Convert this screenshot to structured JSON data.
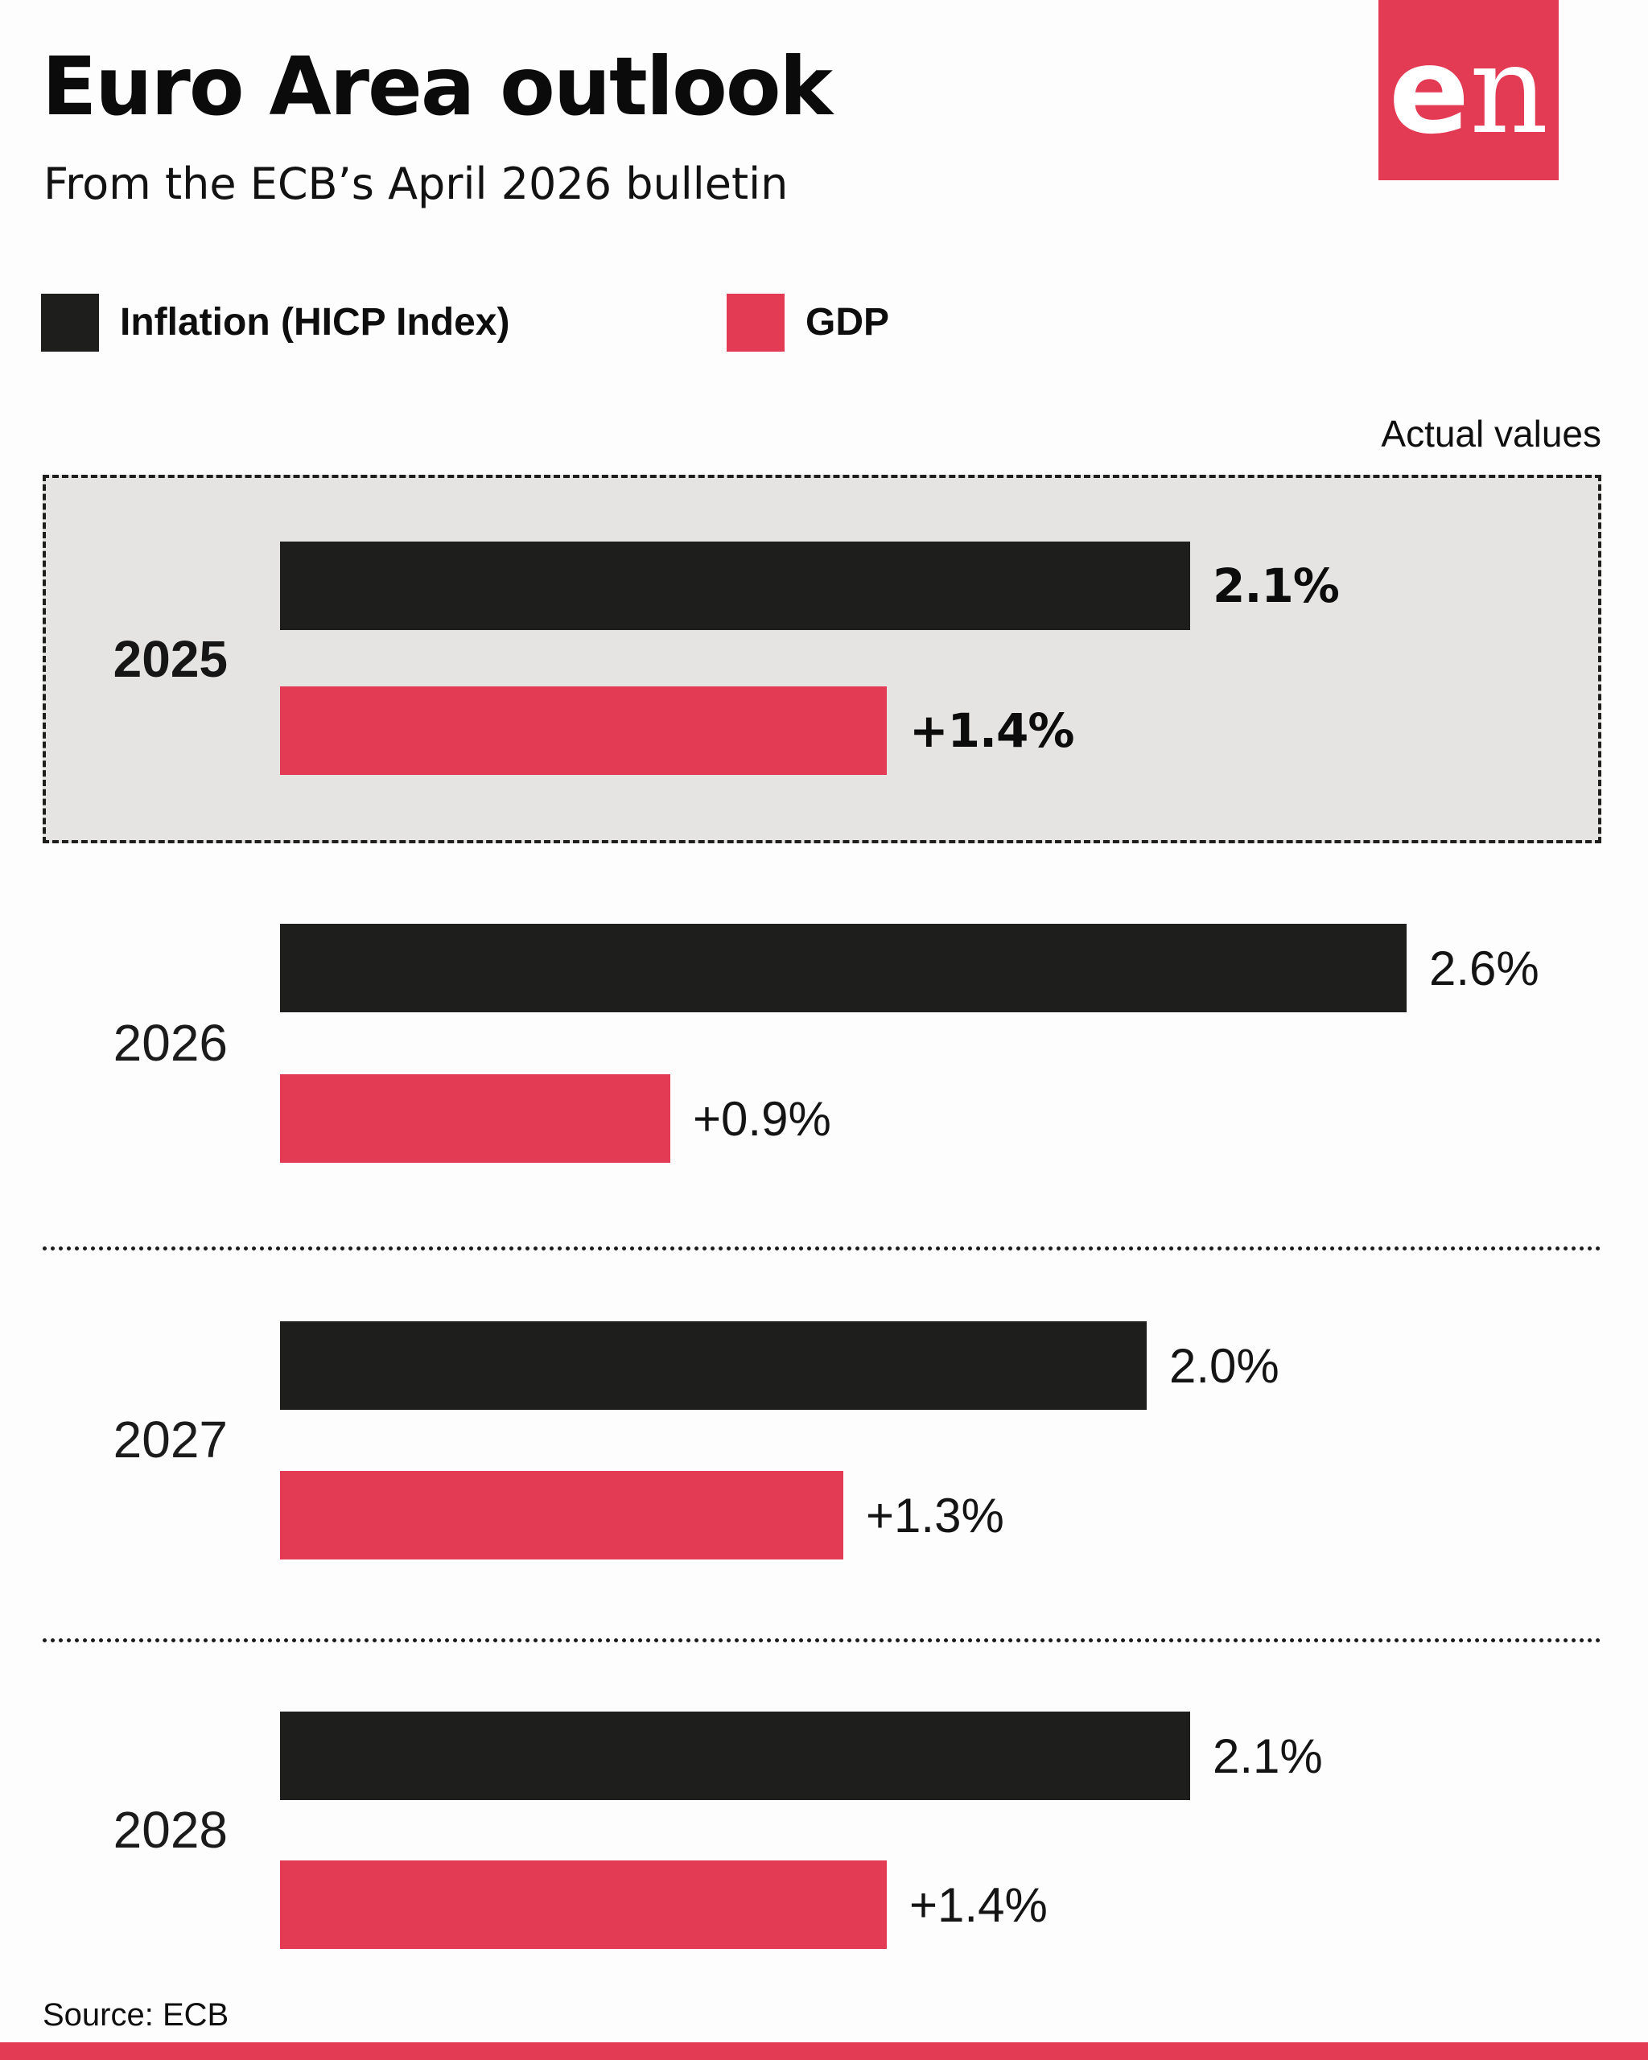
{
  "header": {
    "title": "Euro Area outlook",
    "subtitle": "From the ECB’s April 2026 bulletin"
  },
  "logo": {
    "e": "e",
    "n": "n"
  },
  "legend": {
    "inflation_label": "Inflation (HICP Index)",
    "gdp_label": "GDP"
  },
  "annotations": {
    "actual_values": "Actual values"
  },
  "chart_data": {
    "type": "bar",
    "orientation": "horizontal",
    "title": "Euro Area outlook",
    "subtitle": "From the ECB’s April 2026 bulletin",
    "categories": [
      "2025",
      "2026",
      "2027",
      "2028"
    ],
    "series": [
      {
        "name": "Inflation (HICP Index)",
        "color": "#1E1E1C",
        "values": [
          2.1,
          2.6,
          2.0,
          2.1
        ]
      },
      {
        "name": "GDP",
        "color": "#E43B55",
        "values": [
          1.4,
          0.9,
          1.3,
          1.4
        ]
      }
    ],
    "xlim": [
      0,
      2.6
    ],
    "grid": false,
    "legend_position": "top",
    "highlighted_category": "2025",
    "highlight_note": "Actual values",
    "rows": [
      {
        "year": "2025",
        "highlight": true,
        "inflation_value": 2.1,
        "inflation_label": "2.1%",
        "gdp_value": 1.4,
        "gdp_label": "+1.4%"
      },
      {
        "year": "2026",
        "highlight": false,
        "inflation_value": 2.6,
        "inflation_label": "2.6%",
        "gdp_value": 0.9,
        "gdp_label": "+0.9%"
      },
      {
        "year": "2027",
        "highlight": false,
        "inflation_value": 2.0,
        "inflation_label": "2.0%",
        "gdp_value": 1.3,
        "gdp_label": "+1.3%"
      },
      {
        "year": "2028",
        "highlight": false,
        "inflation_value": 2.1,
        "inflation_label": "2.1%",
        "gdp_value": 1.4,
        "gdp_label": "+1.4%"
      }
    ]
  },
  "colors": {
    "black": "#1E1E1C",
    "red": "#E43B55",
    "highlight_bg": "#E5E4E3",
    "page_bg": "#FDFDFD"
  },
  "footer": {
    "source": "Source: ECB"
  }
}
